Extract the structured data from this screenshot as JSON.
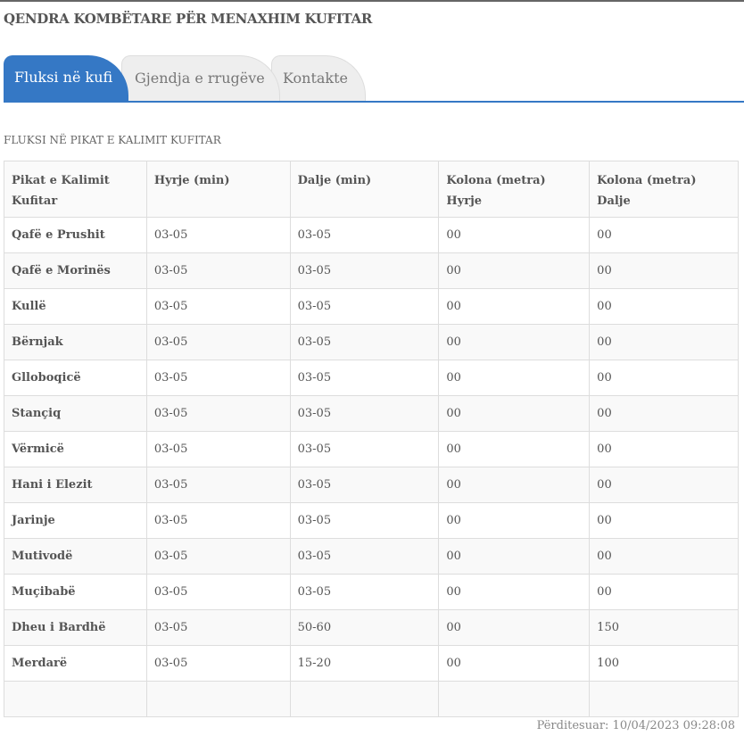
{
  "header": {
    "title": "QENDRA KOMBËTARE PËR MENAXHIM KUFITAR"
  },
  "tabs": [
    {
      "label": "Fluksi në kufi",
      "active": true
    },
    {
      "label": "Gjendja e rrugëve",
      "active": false
    },
    {
      "label": "Kontakte",
      "active": false
    }
  ],
  "section_title": "FLUKSI NË PIKAT E KALIMIT KUFITAR",
  "table": {
    "headers": [
      "Pikat e Kalimit Kufitar",
      "Hyrje (min)",
      "Dalje (min)",
      "Kolona (metra) Hyrje",
      "Kolona (metra) Dalje"
    ],
    "rows": [
      [
        "Qafë e Prushit",
        "03-05",
        "03-05",
        "00",
        "00"
      ],
      [
        "Qafë e Morinës",
        "03-05",
        "03-05",
        "00",
        "00"
      ],
      [
        "Kullë",
        "03-05",
        "03-05",
        "00",
        "00"
      ],
      [
        "Bërnjak",
        "03-05",
        "03-05",
        "00",
        "00"
      ],
      [
        "Glloboqicë",
        "03-05",
        "03-05",
        "00",
        "00"
      ],
      [
        "Stançiq",
        "03-05",
        "03-05",
        "00",
        "00"
      ],
      [
        "Vërmicë",
        "03-05",
        "03-05",
        "00",
        "00"
      ],
      [
        "Hani i Elezit",
        "03-05",
        "03-05",
        "00",
        "00"
      ],
      [
        "Jarinje",
        "03-05",
        "03-05",
        "00",
        "00"
      ],
      [
        "Mutivodë",
        "03-05",
        "03-05",
        "00",
        "00"
      ],
      [
        "Muçibabë",
        "03-05",
        "03-05",
        "00",
        "00"
      ],
      [
        "Dheu i Bardhë",
        "03-05",
        "50-60",
        "00",
        "150"
      ],
      [
        "Merdarë",
        "03-05",
        "15-20",
        "00",
        "100"
      ],
      [
        "",
        "",
        "",
        "",
        ""
      ]
    ]
  },
  "updated": "Përditesuar: 10/04/2023 09:28:08",
  "colors": {
    "accent": "#3578c5"
  }
}
